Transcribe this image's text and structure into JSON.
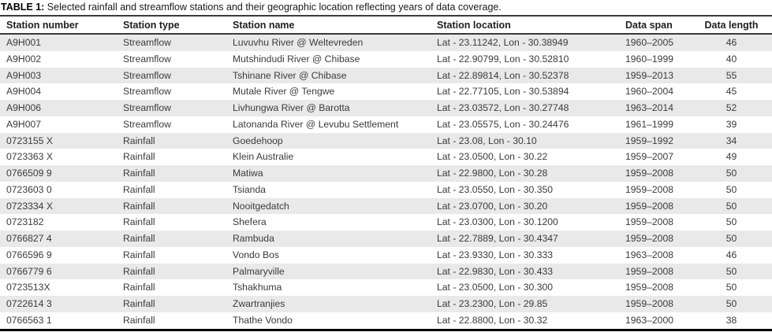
{
  "caption": {
    "label": "TABLE 1:",
    "text": " Selected rainfall and streamflow stations and their geographic location reflecting years of data coverage."
  },
  "table": {
    "column_keys": [
      "station_number",
      "station_type",
      "station_name",
      "station_location",
      "data_span",
      "data_length"
    ],
    "columns": [
      "Station number",
      "Station type",
      "Station name",
      "Station location",
      "Data span",
      "Data length"
    ],
    "rows": [
      [
        "A9H001",
        "Streamflow",
        "Luvuvhu River @ Weltevreden",
        "Lat - 23.11242, Lon - 30.38949",
        "1960–2005",
        "46"
      ],
      [
        "A9H002",
        "Streamflow",
        "Mutshindudi River @ Chibase",
        "Lat - 22.90799, Lon - 30.52810",
        "1960–1999",
        "40"
      ],
      [
        "A9H003",
        "Streamflow",
        "Tshinane River @ Chibase",
        "Lat - 22.89814, Lon - 30.52378",
        "1959–2013",
        "55"
      ],
      [
        "A9H004",
        "Streamflow",
        "Mutale River @ Tengwe",
        "Lat - 22.77105, Lon - 30.53894",
        "1960–2004",
        "45"
      ],
      [
        "A9H006",
        "Streamflow",
        "Livhungwa River @ Barotta",
        "Lat - 23.03572, Lon - 30.27748",
        "1963–2014",
        "52"
      ],
      [
        "A9H007",
        "Streamflow",
        "Latonanda River @ Levubu Settlement",
        "Lat - 23.05575, Lon - 30.24476",
        "1961–1999",
        "39"
      ],
      [
        "0723155 X",
        "Rainfall",
        "Goedehoop",
        "Lat - 23.08, Lon - 30.10",
        "1959–1992",
        "34"
      ],
      [
        "0723363 X",
        "Rainfall",
        "Klein Australie",
        "Lat - 23.0500, Lon - 30.22",
        "1959–2007",
        "49"
      ],
      [
        "0766509 9",
        "Rainfall",
        "Matiwa",
        "Lat - 22.9800, Lon - 30.28",
        "1959–2008",
        "50"
      ],
      [
        "0723603 0",
        "Rainfall",
        "Tsianda",
        "Lat - 23.0550, Lon - 30.350",
        "1959–2008",
        "50"
      ],
      [
        "0723334 X",
        "Rainfall",
        "Nooitgedatch",
        "Lat - 23.0700, Lon - 30.20",
        "1959–2008",
        "50"
      ],
      [
        "0723182",
        "Rainfall",
        "Shefera",
        "Lat - 23.0300, Lon - 30.1200",
        "1959–2008",
        "50"
      ],
      [
        "0766827 4",
        "Rainfall",
        "Rambuda",
        "Lat - 22.7889, Lon - 30.4347",
        "1959–2008",
        "50"
      ],
      [
        "0766596 9",
        "Rainfall",
        "Vondo Bos",
        "Lat - 23.9330, Lon - 30.333",
        "1963–2008",
        "46"
      ],
      [
        "0766779 6",
        "Rainfall",
        "Palmaryville",
        "Lat - 22.9830, Lon - 30.433",
        "1959–2008",
        "50"
      ],
      [
        "0723513X",
        "Rainfall",
        "Tshakhuma",
        "Lat - 23.0500, Lon - 30.300",
        "1959–2008",
        "50"
      ],
      [
        "0722614 3",
        "Rainfall",
        "Zwartranjies",
        "Lat - 23.2300, Lon - 29.85",
        "1959–2008",
        "50"
      ],
      [
        "0766563 1",
        "Rainfall",
        "Thathe Vondo",
        "Lat - 22.8800, Lon - 30.32",
        "1963–2000",
        "38"
      ]
    ],
    "colors": {
      "zebra_row": "#e9e9e9",
      "body_text": "#3b3b3b",
      "header_text": "#1f1f1f",
      "rule": "#000000"
    }
  }
}
